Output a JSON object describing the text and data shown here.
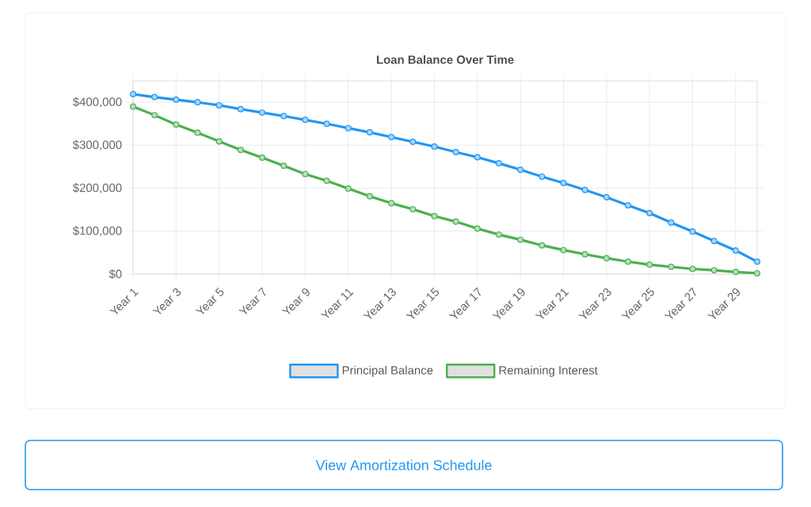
{
  "chart_data": {
    "type": "line",
    "title": "Loan Balance Over Time",
    "categories": [
      "Year 1",
      null,
      "Year 3",
      null,
      "Year 5",
      null,
      "Year 7",
      null,
      "Year 9",
      null,
      "Year 11",
      null,
      "Year 13",
      null,
      "Year 15",
      null,
      "Year 17",
      null,
      "Year 19",
      null,
      "Year 21",
      null,
      "Year 23",
      null,
      "Year 25",
      null,
      "Year 27",
      null,
      "Year 29",
      null
    ],
    "series": [
      {
        "name": "Principal Balance",
        "color": "#2196f3",
        "values": [
          419000,
          412000,
          406000,
          400000,
          393000,
          384000,
          376000,
          368000,
          359000,
          350000,
          340000,
          330000,
          319000,
          308000,
          297000,
          284000,
          272000,
          258000,
          243000,
          227000,
          212000,
          196000,
          179000,
          160000,
          142000,
          120000,
          99000,
          77000,
          55000,
          29000
        ]
      },
      {
        "name": "Remaining Interest",
        "color": "#4caf50",
        "values": [
          390000,
          370000,
          348000,
          329000,
          309000,
          289000,
          271000,
          252000,
          233000,
          217000,
          199000,
          181000,
          165000,
          151000,
          135000,
          122000,
          106000,
          92000,
          80000,
          67000,
          56000,
          46000,
          37000,
          29000,
          22000,
          17000,
          12000,
          9000,
          5000,
          2000
        ]
      }
    ],
    "ylim": [
      0,
      450000
    ],
    "yticks": [
      {
        "value": 0,
        "label": "$0"
      },
      {
        "value": 100000,
        "label": "$100,000"
      },
      {
        "value": 200000,
        "label": "$200,000"
      },
      {
        "value": 300000,
        "label": "$300,000"
      },
      {
        "value": 400000,
        "label": "$400,000"
      }
    ],
    "grid": true,
    "legend": "bottom",
    "marker": "circle",
    "annotations": [
      "View Amortization Schedule"
    ]
  }
}
